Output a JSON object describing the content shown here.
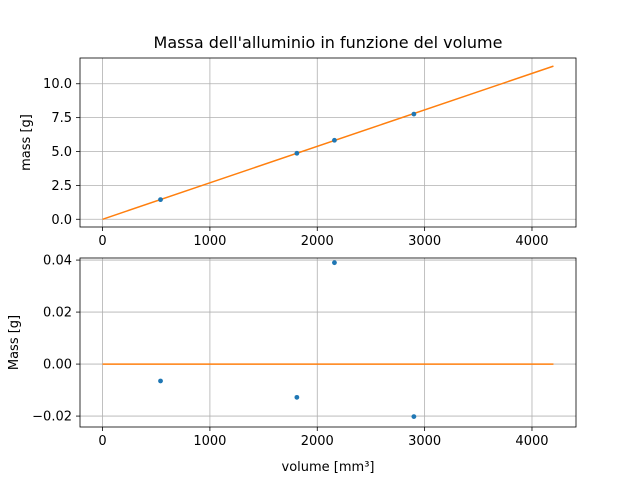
{
  "chart_data": [
    {
      "type": "scatter",
      "title": "Massa dell'alluminio in funzione del volume",
      "xlabel": "",
      "ylabel": "mass [g]",
      "xlim": [
        -210,
        4410
      ],
      "ylim": [
        -0.57,
        11.9
      ],
      "xticks": [
        0,
        1000,
        2000,
        3000,
        4000
      ],
      "yticks": [
        0.0,
        2.5,
        5.0,
        7.5,
        10.0
      ],
      "ytick_labels": [
        "0.0",
        "2.5",
        "5.0",
        "7.5",
        "10.0"
      ],
      "grid": true,
      "series": [
        {
          "kind": "points",
          "color": "#1f77b4",
          "x": [
            540,
            1810,
            2160,
            2900
          ],
          "y": [
            1.45,
            4.87,
            5.83,
            7.76
          ]
        },
        {
          "kind": "line",
          "color": "#ff7f0e",
          "x": [
            0,
            4200
          ],
          "y": [
            0.0,
            11.3
          ]
        }
      ]
    },
    {
      "type": "scatter",
      "title": "",
      "xlabel": "volume [mm³]",
      "ylabel": "Mass [g]",
      "xlim": [
        -210,
        4410
      ],
      "ylim": [
        -0.0242,
        0.0408
      ],
      "xticks": [
        0,
        1000,
        2000,
        3000,
        4000
      ],
      "yticks": [
        -0.02,
        0.0,
        0.02,
        0.04
      ],
      "ytick_labels": [
        "−0.02",
        "0.00",
        "0.02",
        "0.04"
      ],
      "grid": true,
      "series": [
        {
          "kind": "points",
          "color": "#1f77b4",
          "x": [
            540,
            1810,
            2160,
            2900
          ],
          "y": [
            -0.0065,
            -0.0128,
            0.039,
            -0.0202
          ]
        },
        {
          "kind": "line",
          "color": "#ff7f0e",
          "x": [
            0,
            4200
          ],
          "y": [
            0.0,
            0.0
          ]
        }
      ]
    }
  ]
}
